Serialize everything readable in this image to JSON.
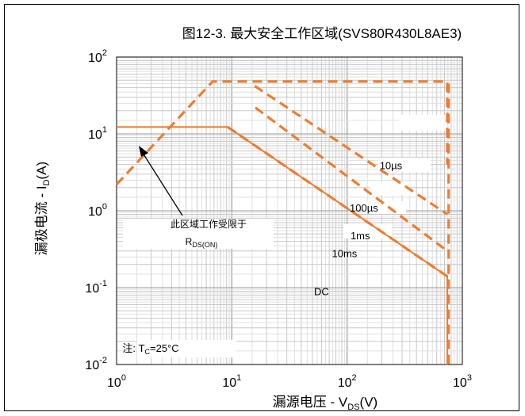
{
  "chart_data": {
    "type": "line",
    "title": "图12-3. 最大安全工作区域(SVS80R430L8AE3)",
    "xlabel": {
      "main": "漏源电压 - V",
      "sub": "DS",
      "tail": "(V)"
    },
    "ylabel": {
      "main": "漏极电流 - I",
      "sub": "D",
      "tail": "(A)"
    },
    "x_scale": "log",
    "y_scale": "log",
    "xlim": [
      1,
      1000
    ],
    "ylim": [
      0.01,
      100
    ],
    "x_ticks": [
      {
        "base": "10",
        "exp": "0"
      },
      {
        "base": "10",
        "exp": "1"
      },
      {
        "base": "10",
        "exp": "2"
      },
      {
        "base": "10",
        "exp": "3"
      }
    ],
    "y_ticks": [
      {
        "base": "10",
        "exp": "2"
      },
      {
        "base": "10",
        "exp": "1"
      },
      {
        "base": "10",
        "exp": "0"
      },
      {
        "base": "10",
        "exp": "-1"
      },
      {
        "base": "10",
        "exp": "-2"
      }
    ],
    "grid": true,
    "color": "#ed7d31",
    "series": [
      {
        "name": "10µs",
        "style": "dashed",
        "x": [
          1,
          6.8,
          15.8,
          67,
          740,
          740
        ],
        "y": [
          2.2,
          48,
          48,
          48,
          48,
          4
        ]
      },
      {
        "name": "100µs",
        "style": "dashed",
        "x": [
          15.8,
          740
        ],
        "y": [
          42,
          0.9
        ]
      },
      {
        "name": "1ms",
        "style": "dashed",
        "x": [
          16,
          740
        ],
        "y": [
          22,
          0.3
        ]
      },
      {
        "name": "10ms",
        "style": "dashed",
        "x": [
          9.2,
          740
        ],
        "y": [
          12.3,
          0.14
        ]
      },
      {
        "name": "DC",
        "style": "solid",
        "x": [
          1,
          9.2,
          740,
          740
        ],
        "y": [
          12.3,
          12.3,
          0.14,
          0.01
        ]
      },
      {
        "name": "",
        "style": "dashed",
        "x": [
          760,
          760
        ],
        "y": [
          45,
          0.01
        ]
      }
    ],
    "series_labels": [
      {
        "text": "10µs",
        "x": 240,
        "y": 3.9
      },
      {
        "text": "100µs",
        "x": 140,
        "y": 1.1
      },
      {
        "text": "1ms",
        "x": 130,
        "y": 0.48
      },
      {
        "text": "10ms",
        "x": 95,
        "y": 0.28
      },
      {
        "text": "DC",
        "x": 60,
        "y": 0.09
      }
    ],
    "annotations": {
      "limit_text": "此区域工作受限于",
      "limit_sub_main": "R",
      "limit_sub_sub": "DS(ON)",
      "note_main": "注: T",
      "note_sub": "C",
      "note_tail": "=25°C"
    }
  }
}
